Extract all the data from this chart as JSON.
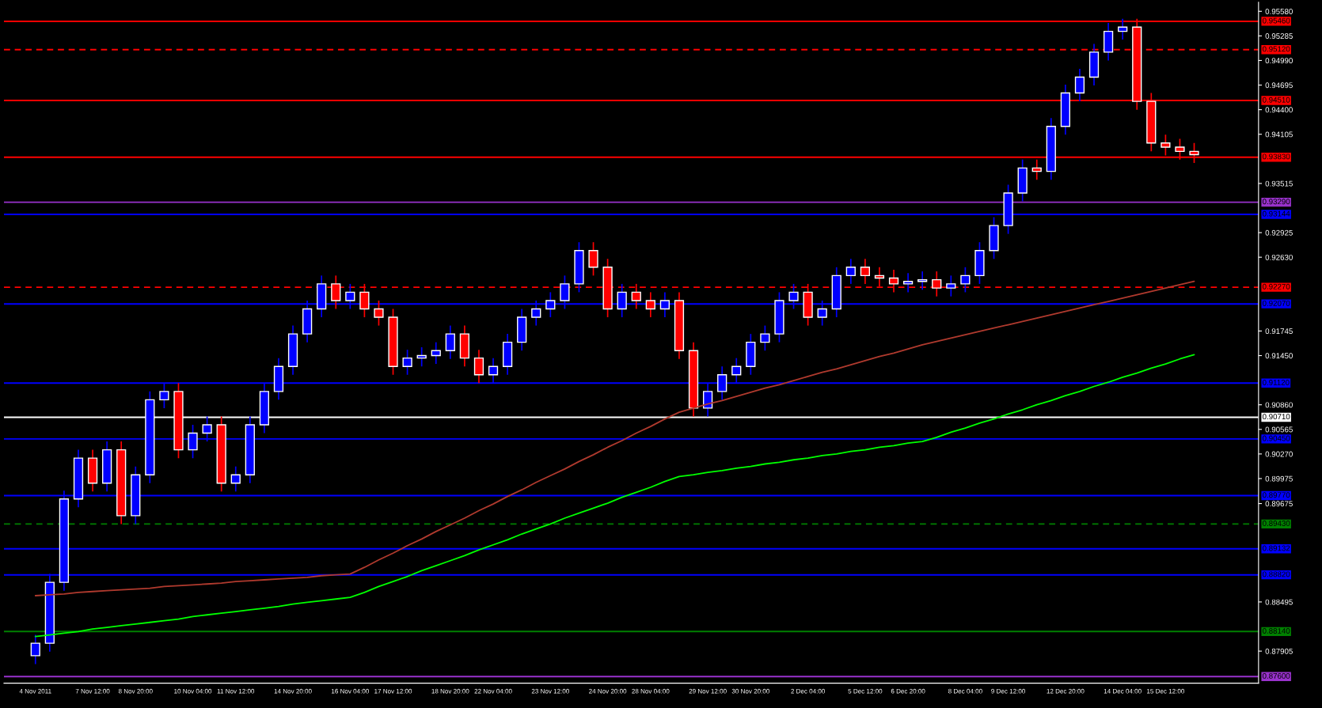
{
  "chart_data": {
    "type": "candlestick",
    "categories": [
      "4 Nov 2011",
      null,
      null,
      null,
      "7 Nov 12:00",
      null,
      null,
      "8 Nov 20:00",
      null,
      null,
      null,
      "10 Nov 04:00",
      null,
      null,
      "11 Nov 12:00",
      null,
      null,
      null,
      "14 Nov 20:00",
      null,
      null,
      null,
      "16 Nov 04:00",
      null,
      null,
      "17 Nov 12:00",
      null,
      null,
      null,
      "18 Nov 20:00",
      null,
      null,
      "22 Nov 04:00",
      null,
      null,
      null,
      "23 Nov 12:00",
      null,
      null,
      null,
      "24 Nov 20:00",
      null,
      null,
      "28 Nov 04:00",
      null,
      null,
      null,
      "29 Nov 12:00",
      null,
      null,
      "30 Nov 20:00",
      null,
      null,
      null,
      "2 Dec 04:00",
      null,
      null,
      null,
      "5 Dec 12:00",
      null,
      null,
      "6 Dec 20:00",
      null,
      null,
      null,
      "8 Dec 04:00",
      null,
      null,
      "9 Dec 12:00",
      null,
      null,
      null,
      "12 Dec 20:00",
      null,
      null,
      null,
      "14 Dec 04:00",
      null,
      null,
      "15 Dec 12:00",
      null,
      null
    ],
    "ohlc": [
      [
        0.8785,
        0.881,
        0.8775,
        0.88
      ],
      [
        0.88,
        0.8883,
        0.879,
        0.8873
      ],
      [
        0.8873,
        0.8983,
        0.8863,
        0.8973
      ],
      [
        0.8973,
        0.9032,
        0.8963,
        0.9022
      ],
      [
        0.9022,
        0.9032,
        0.8982,
        0.8992
      ],
      [
        0.8992,
        0.9042,
        0.8982,
        0.9032
      ],
      [
        0.9032,
        0.9042,
        0.8943,
        0.8953
      ],
      [
        0.8953,
        0.9012,
        0.8943,
        0.9002
      ],
      [
        0.9002,
        0.9102,
        0.8992,
        0.9092
      ],
      [
        0.9092,
        0.9112,
        0.9082,
        0.9102
      ],
      [
        0.9102,
        0.9112,
        0.9022,
        0.9032
      ],
      [
        0.9032,
        0.9062,
        0.9022,
        0.9052
      ],
      [
        0.9052,
        0.9072,
        0.9042,
        0.9062
      ],
      [
        0.9062,
        0.9072,
        0.8982,
        0.8992
      ],
      [
        0.8992,
        0.9012,
        0.8982,
        0.9002
      ],
      [
        0.9002,
        0.9072,
        0.8992,
        0.9062
      ],
      [
        0.9062,
        0.9112,
        0.9052,
        0.9102
      ],
      [
        0.9102,
        0.9142,
        0.9092,
        0.9132
      ],
      [
        0.9132,
        0.9181,
        0.9122,
        0.9171
      ],
      [
        0.9171,
        0.9211,
        0.9161,
        0.9201
      ],
      [
        0.9201,
        0.9241,
        0.9191,
        0.9231
      ],
      [
        0.9231,
        0.9241,
        0.9201,
        0.9211
      ],
      [
        0.9211,
        0.9231,
        0.9201,
        0.9221
      ],
      [
        0.9221,
        0.9231,
        0.9191,
        0.9201
      ],
      [
        0.9201,
        0.9211,
        0.9181,
        0.9191
      ],
      [
        0.9191,
        0.9201,
        0.9122,
        0.9132
      ],
      [
        0.9132,
        0.9152,
        0.9122,
        0.9142
      ],
      [
        0.9142,
        0.9155,
        0.9132,
        0.9145
      ],
      [
        0.9145,
        0.9161,
        0.9135,
        0.9151
      ],
      [
        0.9151,
        0.9181,
        0.9141,
        0.9171
      ],
      [
        0.9171,
        0.9181,
        0.9132,
        0.9142
      ],
      [
        0.9142,
        0.9152,
        0.9112,
        0.9122
      ],
      [
        0.9122,
        0.9142,
        0.9112,
        0.9132
      ],
      [
        0.9132,
        0.9171,
        0.9122,
        0.9161
      ],
      [
        0.9161,
        0.9201,
        0.9151,
        0.9191
      ],
      [
        0.9191,
        0.9211,
        0.9181,
        0.9201
      ],
      [
        0.9201,
        0.9221,
        0.9191,
        0.9211
      ],
      [
        0.9211,
        0.9241,
        0.9201,
        0.9231
      ],
      [
        0.9231,
        0.9281,
        0.9221,
        0.9271
      ],
      [
        0.9271,
        0.9281,
        0.9241,
        0.9251
      ],
      [
        0.9251,
        0.9261,
        0.9191,
        0.9201
      ],
      [
        0.9201,
        0.9231,
        0.9191,
        0.9221
      ],
      [
        0.9221,
        0.9231,
        0.9201,
        0.9211
      ],
      [
        0.9211,
        0.9221,
        0.9191,
        0.9201
      ],
      [
        0.9201,
        0.9221,
        0.9191,
        0.9211
      ],
      [
        0.9211,
        0.9221,
        0.9141,
        0.9151
      ],
      [
        0.9151,
        0.9161,
        0.9072,
        0.9082
      ],
      [
        0.9082,
        0.9112,
        0.9072,
        0.9102
      ],
      [
        0.9102,
        0.9132,
        0.9092,
        0.9122
      ],
      [
        0.9122,
        0.9142,
        0.9112,
        0.9132
      ],
      [
        0.9132,
        0.9171,
        0.9122,
        0.9161
      ],
      [
        0.9161,
        0.9181,
        0.9151,
        0.9171
      ],
      [
        0.9171,
        0.9221,
        0.9161,
        0.9211
      ],
      [
        0.9211,
        0.9231,
        0.9201,
        0.9221
      ],
      [
        0.9221,
        0.9231,
        0.9181,
        0.9191
      ],
      [
        0.9191,
        0.9211,
        0.9181,
        0.9201
      ],
      [
        0.9201,
        0.9251,
        0.9191,
        0.9241
      ],
      [
        0.9241,
        0.9261,
        0.9231,
        0.9251
      ],
      [
        0.9251,
        0.9261,
        0.9231,
        0.9241
      ],
      [
        0.9241,
        0.9251,
        0.9228,
        0.9238
      ],
      [
        0.9238,
        0.9248,
        0.9221,
        0.9231
      ],
      [
        0.9231,
        0.9244,
        0.9221,
        0.9234
      ],
      [
        0.9234,
        0.9246,
        0.9224,
        0.9236
      ],
      [
        0.9236,
        0.9246,
        0.9216,
        0.9226
      ],
      [
        0.9226,
        0.9241,
        0.9216,
        0.9231
      ],
      [
        0.9231,
        0.9251,
        0.9221,
        0.9241
      ],
      [
        0.9241,
        0.9281,
        0.9231,
        0.9271
      ],
      [
        0.9271,
        0.9311,
        0.9261,
        0.9301
      ],
      [
        0.9301,
        0.935,
        0.9291,
        0.934
      ],
      [
        0.934,
        0.938,
        0.933,
        0.937
      ],
      [
        0.937,
        0.938,
        0.9356,
        0.9366
      ],
      [
        0.9366,
        0.943,
        0.9356,
        0.942
      ],
      [
        0.942,
        0.947,
        0.941,
        0.946
      ],
      [
        0.946,
        0.9489,
        0.945,
        0.9479
      ],
      [
        0.9479,
        0.9519,
        0.9469,
        0.9509
      ],
      [
        0.9509,
        0.9544,
        0.9499,
        0.9534
      ],
      [
        0.9534,
        0.9549,
        0.9524,
        0.9539
      ],
      [
        0.9539,
        0.9549,
        0.944,
        0.945
      ],
      [
        0.945,
        0.946,
        0.939,
        0.94
      ],
      [
        0.94,
        0.941,
        0.9385,
        0.9395
      ],
      [
        0.9395,
        0.9405,
        0.938,
        0.939
      ],
      [
        0.939,
        0.94,
        0.9376,
        0.9386
      ]
    ],
    "colors": [
      "#0000ff",
      "#0000ff",
      "#0000ff",
      "#0000ff",
      "#ff0000",
      "#0000ff",
      "#ff0000",
      "#0000ff",
      "#0000ff",
      "#0000ff",
      "#ff0000",
      "#0000ff",
      "#0000ff",
      "#ff0000",
      "#0000ff",
      "#0000ff",
      "#0000ff",
      "#0000ff",
      "#0000ff",
      "#0000ff",
      "#0000ff",
      "#ff0000",
      "#0000ff",
      "#ff0000",
      "#ff0000",
      "#ff0000",
      "#0000ff",
      "#0000ff",
      "#0000ff",
      "#0000ff",
      "#ff0000",
      "#ff0000",
      "#0000ff",
      "#0000ff",
      "#0000ff",
      "#0000ff",
      "#0000ff",
      "#0000ff",
      "#0000ff",
      "#ff0000",
      "#ff0000",
      "#0000ff",
      "#ff0000",
      "#ff0000",
      "#0000ff",
      "#ff0000",
      "#ff0000",
      "#0000ff",
      "#0000ff",
      "#0000ff",
      "#0000ff",
      "#0000ff",
      "#0000ff",
      "#0000ff",
      "#ff0000",
      "#0000ff",
      "#0000ff",
      "#0000ff",
      "#ff0000",
      "#ff0000",
      "#ff0000",
      "#0000ff",
      "#0000ff",
      "#ff0000",
      "#0000ff",
      "#0000ff",
      "#0000ff",
      "#0000ff",
      "#0000ff",
      "#0000ff",
      "#ff0000",
      "#0000ff",
      "#0000ff",
      "#0000ff",
      "#0000ff",
      "#0000ff",
      "#0000ff",
      "#ff0000",
      "#ff0000",
      "#ff0000",
      "#ff0000",
      "#ff0000"
    ],
    "series": [
      {
        "type": "line",
        "color": "#00ff00",
        "values": [
          0.8808,
          0.881,
          0.8812,
          0.8814,
          0.8817,
          0.8819,
          0.8821,
          0.8823,
          0.8825,
          0.8827,
          0.8829,
          0.8832,
          0.8834,
          0.8836,
          0.8838,
          0.884,
          0.8842,
          0.8844,
          0.8847,
          0.8849,
          0.8851,
          0.8853,
          0.8855,
          0.8861,
          0.8868,
          0.8874,
          0.888,
          0.8887,
          0.8893,
          0.8899,
          0.8905,
          0.8912,
          0.8918,
          0.8924,
          0.8931,
          0.8937,
          0.8943,
          0.895,
          0.8956,
          0.8962,
          0.8968,
          0.8975,
          0.8981,
          0.8987,
          0.8994,
          0.9,
          0.9002,
          0.9005,
          0.9007,
          0.901,
          0.9012,
          0.9015,
          0.9017,
          0.902,
          0.9022,
          0.9025,
          0.9027,
          0.903,
          0.9032,
          0.9035,
          0.9037,
          0.904,
          0.9042,
          0.9047,
          0.9053,
          0.9058,
          0.9064,
          0.9069,
          0.9075,
          0.908,
          0.9086,
          0.9091,
          0.9097,
          0.9102,
          0.9108,
          0.9113,
          0.9119,
          0.9124,
          0.913,
          0.9135,
          0.9141,
          0.9146
        ]
      },
      {
        "type": "line",
        "color": "#b03a2e",
        "values": [
          0.8857,
          0.8858,
          0.8859,
          0.8861,
          0.8862,
          0.8863,
          0.8864,
          0.8865,
          0.8866,
          0.8868,
          0.8869,
          0.887,
          0.8871,
          0.8872,
          0.8874,
          0.8875,
          0.8876,
          0.8877,
          0.8878,
          0.8879,
          0.8881,
          0.8882,
          0.8883,
          0.8891,
          0.89,
          0.8908,
          0.8917,
          0.8925,
          0.8934,
          0.8942,
          0.895,
          0.8959,
          0.8967,
          0.8976,
          0.8984,
          0.8993,
          0.9001,
          0.9009,
          0.9018,
          0.9026,
          0.9035,
          0.9043,
          0.9052,
          0.906,
          0.9069,
          0.9077,
          0.9082,
          0.9087,
          0.9091,
          0.9096,
          0.9101,
          0.9106,
          0.911,
          0.9115,
          0.912,
          0.9125,
          0.9129,
          0.9134,
          0.9139,
          0.9144,
          0.9148,
          0.9153,
          0.9158,
          0.9162,
          0.9166,
          0.917,
          0.9174,
          0.9178,
          0.9182,
          0.9186,
          0.919,
          0.9194,
          0.9198,
          0.9202,
          0.9206,
          0.921,
          0.9214,
          0.9218,
          0.9222,
          0.9226,
          0.923,
          0.9234
        ]
      }
    ],
    "ylim": [
      0.8752,
      0.9569
    ],
    "yticks": [
      {
        "value": 0.9558,
        "label": "0.95580"
      },
      {
        "value": 0.95285,
        "label": "0.95285"
      },
      {
        "value": 0.9499,
        "label": "0.94990"
      },
      {
        "value": 0.94695,
        "label": "0.94695"
      },
      {
        "value": 0.944,
        "label": "0.94400"
      },
      {
        "value": 0.94105,
        "label": "0.94105"
      },
      {
        "value": 0.93515,
        "label": "0.93515"
      },
      {
        "value": 0.92925,
        "label": "0.92925"
      },
      {
        "value": 0.9263,
        "label": "0.92630"
      },
      {
        "value": 0.91745,
        "label": "0.91745"
      },
      {
        "value": 0.9145,
        "label": "0.91450"
      },
      {
        "value": 0.9086,
        "label": "0.90860"
      },
      {
        "value": 0.90565,
        "label": "0.90565"
      },
      {
        "value": 0.9027,
        "label": "0.90270"
      },
      {
        "value": 0.89975,
        "label": "0.89975"
      },
      {
        "value": 0.89675,
        "label": "0.89675"
      },
      {
        "value": 0.88495,
        "label": "0.88495"
      },
      {
        "value": 0.87905,
        "label": "0.87905"
      }
    ],
    "ref_lines": [
      {
        "axis": "y",
        "value": 0.9546,
        "label": "0.95460",
        "color": "#ff0000",
        "line_style": "solid"
      },
      {
        "axis": "y",
        "value": 0.9512,
        "label": "0.95120",
        "color": "#ff0000",
        "line_style": "dashed"
      },
      {
        "axis": "y",
        "value": 0.9451,
        "label": "0.94510",
        "color": "#ff0000",
        "line_style": "solid"
      },
      {
        "axis": "y",
        "value": 0.9383,
        "label": "0.93830",
        "color": "#ff0000",
        "line_style": "solid"
      },
      {
        "axis": "y",
        "value": 0.9329,
        "label": "0.93290",
        "color": "#9932cc",
        "line_style": "solid"
      },
      {
        "axis": "y",
        "value": 0.93144,
        "label": "0.93144",
        "color": "#0000ff",
        "line_style": "solid"
      },
      {
        "axis": "y",
        "value": 0.9227,
        "label": "0.92270",
        "color": "#ff0000",
        "line_style": "dashed"
      },
      {
        "axis": "y",
        "value": 0.9207,
        "label": "0.92070",
        "color": "#0000ff",
        "line_style": "solid"
      },
      {
        "axis": "y",
        "value": 0.9112,
        "label": "0.91120",
        "color": "#0000ff",
        "line_style": "solid"
      },
      {
        "axis": "y",
        "value": 0.9071,
        "label": "0.90710",
        "color": "#ffffff",
        "line_style": "solid"
      },
      {
        "axis": "y",
        "value": 0.9045,
        "label": "0.90450",
        "color": "#0000ff",
        "line_style": "solid"
      },
      {
        "axis": "y",
        "value": 0.8977,
        "label": "0.89770",
        "color": "#0000ff",
        "line_style": "solid"
      },
      {
        "axis": "y",
        "value": 0.8943,
        "label": "0.89430",
        "color": "#008000",
        "line_style": "dashed"
      },
      {
        "axis": "y",
        "value": 0.89132,
        "label": "0.89132",
        "color": "#0000ff",
        "line_style": "solid"
      },
      {
        "axis": "y",
        "value": 0.8882,
        "label": "0.88820",
        "color": "#0000ff",
        "line_style": "solid"
      },
      {
        "axis": "y",
        "value": 0.8814,
        "label": "0.88140",
        "color": "#008000",
        "line_style": "solid"
      },
      {
        "axis": "y",
        "value": 0.876,
        "label": "0.87600",
        "color": "#9932cc",
        "line_style": "solid"
      }
    ]
  }
}
